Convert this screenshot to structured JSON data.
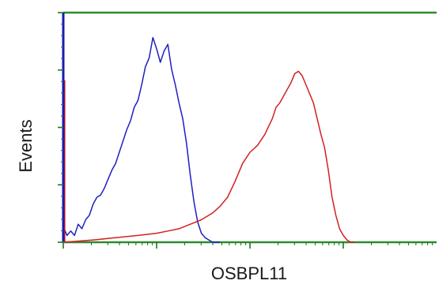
{
  "chart_data": {
    "type": "line",
    "title": "",
    "xlabel": "OSBPL11",
    "ylabel": "Events",
    "x_scale": "log",
    "grid": false,
    "legend": "none",
    "xlim": [
      0,
      100
    ],
    "ylim": [
      0,
      100
    ],
    "colors": {
      "frame": "#2e8b2e",
      "left_axis": "#1a1ab0",
      "baseline": "#2e8b2e",
      "series_control": "#1f1fc0",
      "series_sample": "#d42020"
    },
    "series": [
      {
        "key": "control",
        "x": [
          0,
          1,
          2,
          3,
          4,
          5,
          6,
          7,
          8,
          9,
          10,
          11,
          12,
          13,
          14,
          15,
          16,
          17,
          18,
          19,
          20,
          21,
          22,
          23,
          24,
          25,
          26,
          27,
          28,
          29,
          30,
          31,
          32,
          33,
          34,
          35,
          36,
          37,
          38,
          39,
          40,
          41,
          42
        ],
        "values": [
          7,
          3,
          5,
          3,
          8,
          6,
          10,
          12,
          17,
          20,
          21,
          24,
          28,
          32,
          35,
          40,
          45,
          50,
          54,
          60,
          63,
          70,
          78,
          82,
          91,
          86,
          80,
          85,
          88,
          77,
          70,
          62,
          55,
          44,
          30,
          18,
          9,
          4,
          2,
          1,
          0,
          0,
          0
        ]
      },
      {
        "key": "sample",
        "x": [
          0,
          8,
          14,
          20,
          25,
          28,
          31,
          34,
          37,
          40,
          42,
          44,
          46,
          48,
          50,
          52,
          54,
          56,
          57,
          58,
          59,
          60,
          61,
          62,
          63,
          64,
          65,
          66,
          67,
          68,
          69,
          70,
          71,
          72,
          73,
          74,
          75,
          76,
          77,
          78
        ],
        "values": [
          0,
          1,
          2,
          3,
          4,
          5,
          6,
          8,
          10,
          13,
          16,
          20,
          27,
          35,
          40,
          43,
          48,
          55,
          60,
          62,
          65,
          68,
          71,
          75,
          76,
          74,
          70,
          66,
          62,
          55,
          48,
          42,
          32,
          20,
          12,
          6,
          3,
          1,
          0,
          0
        ]
      }
    ]
  }
}
